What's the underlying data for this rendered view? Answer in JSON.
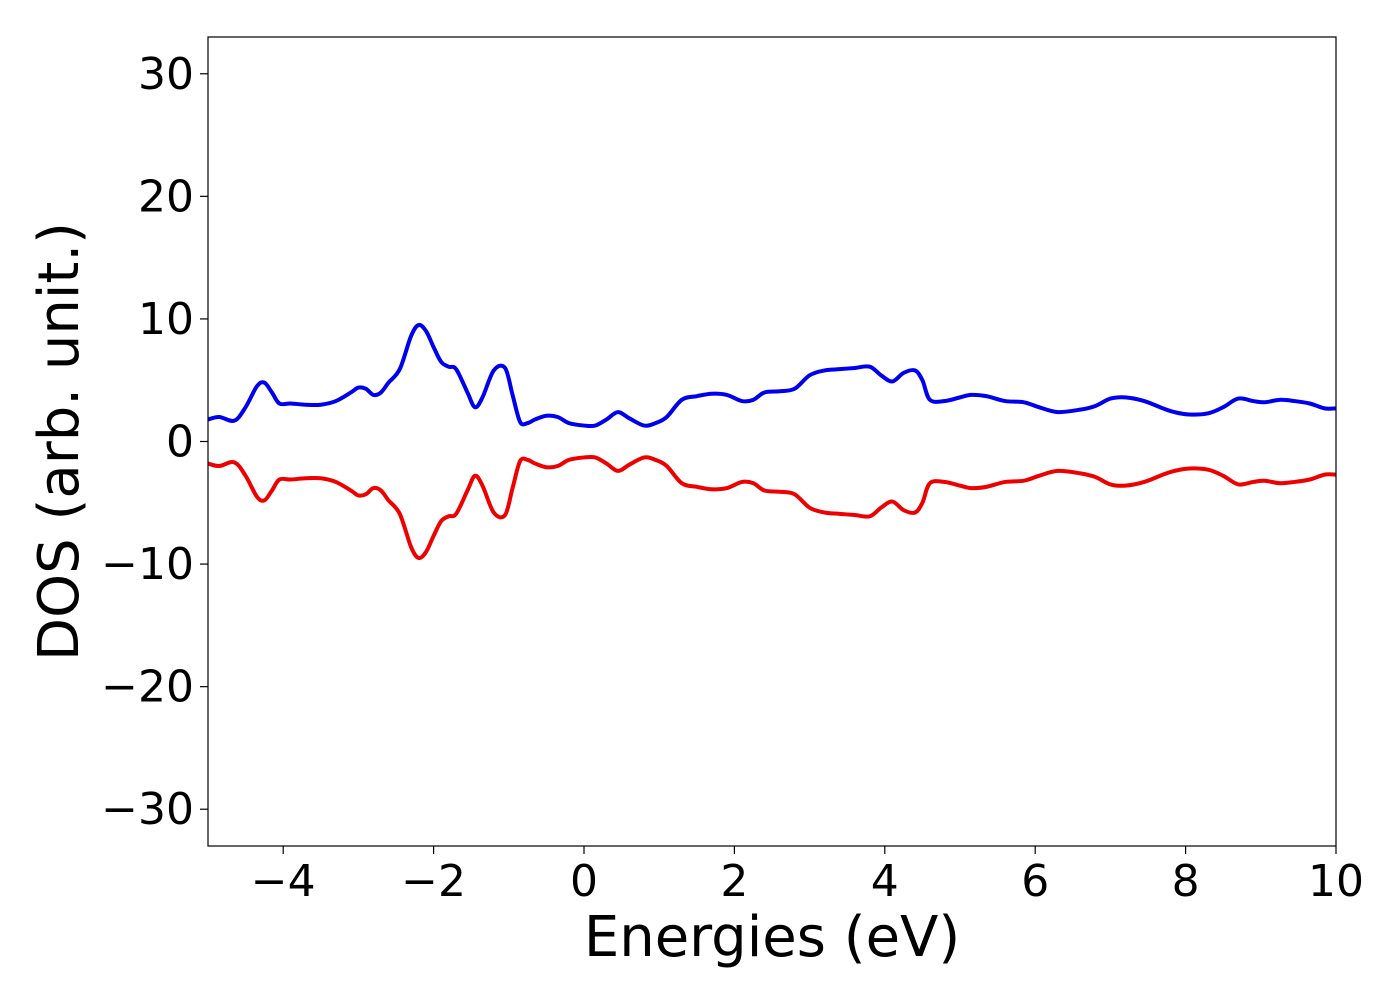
{
  "chart_data": {
    "type": "line",
    "title": "",
    "xlabel": "Energies (eV)",
    "ylabel": "DOS (arb. unit.)",
    "xlim": [
      -5,
      10
    ],
    "ylim": [
      -33,
      33
    ],
    "xticks": [
      -4,
      -2,
      0,
      2,
      4,
      6,
      8,
      10
    ],
    "xtick_labels": [
      "−4",
      "−2",
      "0",
      "2",
      "4",
      "6",
      "8",
      "10"
    ],
    "yticks": [
      30,
      20,
      10,
      0,
      -10,
      -20,
      -30
    ],
    "ytick_labels": [
      "30",
      "20",
      "10",
      "0",
      "−10",
      "−20",
      "−30"
    ],
    "grid": false,
    "series": [
      {
        "color": "#0000ee",
        "x": [
          -5.0,
          -4.85,
          -4.65,
          -4.5,
          -4.35,
          -4.25,
          -4.15,
          -4.05,
          -3.9,
          -3.7,
          -3.5,
          -3.3,
          -3.1,
          -3.0,
          -2.9,
          -2.8,
          -2.7,
          -2.6,
          -2.45,
          -2.3,
          -2.2,
          -2.1,
          -2.0,
          -1.9,
          -1.8,
          -1.7,
          -1.55,
          -1.45,
          -1.35,
          -1.2,
          -1.05,
          -0.95,
          -0.85,
          -0.75,
          -0.65,
          -0.5,
          -0.35,
          -0.2,
          0.0,
          0.15,
          0.3,
          0.45,
          0.6,
          0.8,
          0.95,
          1.1,
          1.3,
          1.5,
          1.7,
          1.9,
          2.1,
          2.25,
          2.4,
          2.6,
          2.8,
          3.0,
          3.2,
          3.4,
          3.6,
          3.8,
          3.95,
          4.1,
          4.25,
          4.4,
          4.5,
          4.6,
          4.8,
          5.0,
          5.15,
          5.35,
          5.6,
          5.85,
          6.05,
          6.3,
          6.6,
          6.8,
          7.0,
          7.2,
          7.45,
          7.7,
          7.85,
          8.05,
          8.3,
          8.5,
          8.7,
          8.9,
          9.05,
          9.25,
          9.45,
          9.65,
          9.85,
          10.0
        ],
        "values": [
          1.8,
          2.0,
          1.7,
          2.8,
          4.5,
          4.8,
          4.0,
          3.1,
          3.1,
          3.0,
          3.0,
          3.3,
          4.0,
          4.4,
          4.3,
          3.8,
          4.0,
          4.8,
          5.9,
          8.6,
          9.5,
          9.0,
          7.7,
          6.5,
          6.1,
          5.9,
          4.0,
          2.8,
          3.6,
          5.8,
          6.0,
          3.8,
          1.6,
          1.5,
          1.8,
          2.1,
          2.0,
          1.5,
          1.3,
          1.3,
          1.8,
          2.4,
          1.9,
          1.3,
          1.5,
          2.0,
          3.4,
          3.7,
          3.9,
          3.8,
          3.3,
          3.4,
          4.0,
          4.1,
          4.3,
          5.4,
          5.8,
          5.9,
          6.0,
          6.1,
          5.4,
          4.9,
          5.6,
          5.8,
          5.0,
          3.4,
          3.3,
          3.6,
          3.8,
          3.7,
          3.3,
          3.2,
          2.8,
          2.4,
          2.6,
          2.9,
          3.5,
          3.6,
          3.3,
          2.7,
          2.4,
          2.2,
          2.3,
          2.8,
          3.5,
          3.3,
          3.2,
          3.4,
          3.3,
          3.1,
          2.7,
          2.7
        ]
      },
      {
        "color": "#ee0000",
        "x": [
          -5.0,
          -4.85,
          -4.65,
          -4.5,
          -4.35,
          -4.25,
          -4.15,
          -4.05,
          -3.9,
          -3.7,
          -3.5,
          -3.3,
          -3.1,
          -3.0,
          -2.9,
          -2.8,
          -2.7,
          -2.6,
          -2.45,
          -2.3,
          -2.2,
          -2.1,
          -2.0,
          -1.9,
          -1.8,
          -1.7,
          -1.55,
          -1.45,
          -1.35,
          -1.2,
          -1.05,
          -0.95,
          -0.85,
          -0.75,
          -0.65,
          -0.5,
          -0.35,
          -0.2,
          0.0,
          0.15,
          0.3,
          0.45,
          0.6,
          0.8,
          0.95,
          1.1,
          1.3,
          1.5,
          1.7,
          1.9,
          2.1,
          2.25,
          2.4,
          2.6,
          2.8,
          3.0,
          3.2,
          3.4,
          3.6,
          3.8,
          3.95,
          4.1,
          4.25,
          4.4,
          4.5,
          4.6,
          4.8,
          5.0,
          5.15,
          5.35,
          5.6,
          5.85,
          6.05,
          6.3,
          6.6,
          6.8,
          7.0,
          7.2,
          7.45,
          7.7,
          7.85,
          8.05,
          8.3,
          8.5,
          8.7,
          8.9,
          9.05,
          9.25,
          9.45,
          9.65,
          9.85,
          10.0
        ],
        "values": [
          -1.8,
          -2.0,
          -1.7,
          -2.8,
          -4.5,
          -4.8,
          -4.0,
          -3.1,
          -3.1,
          -3.0,
          -3.0,
          -3.3,
          -4.0,
          -4.4,
          -4.3,
          -3.8,
          -4.0,
          -4.8,
          -5.9,
          -8.6,
          -9.5,
          -9.0,
          -7.7,
          -6.5,
          -6.1,
          -5.9,
          -4.0,
          -2.8,
          -3.6,
          -5.8,
          -6.0,
          -3.8,
          -1.6,
          -1.5,
          -1.8,
          -2.1,
          -2.0,
          -1.5,
          -1.3,
          -1.3,
          -1.8,
          -2.4,
          -1.9,
          -1.3,
          -1.5,
          -2.0,
          -3.4,
          -3.7,
          -3.9,
          -3.8,
          -3.3,
          -3.4,
          -4.0,
          -4.1,
          -4.3,
          -5.4,
          -5.8,
          -5.9,
          -6.0,
          -6.1,
          -5.4,
          -4.9,
          -5.6,
          -5.8,
          -5.0,
          -3.4,
          -3.3,
          -3.6,
          -3.8,
          -3.7,
          -3.3,
          -3.2,
          -2.8,
          -2.4,
          -2.6,
          -2.9,
          -3.5,
          -3.6,
          -3.3,
          -2.7,
          -2.4,
          -2.2,
          -2.3,
          -2.8,
          -3.5,
          -3.3,
          -3.2,
          -3.4,
          -3.3,
          -3.1,
          -2.7,
          -2.7
        ]
      }
    ]
  }
}
